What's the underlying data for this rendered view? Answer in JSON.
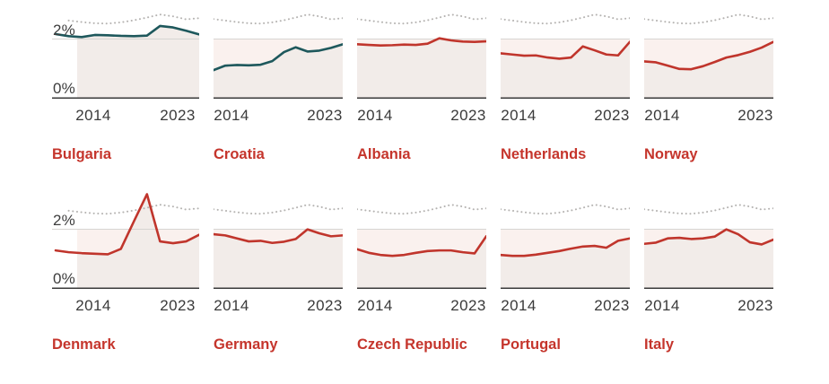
{
  "chart_data": {
    "type": "line",
    "x": [
      2013,
      2014,
      2015,
      2016,
      2017,
      2018,
      2019,
      2020,
      2021,
      2022,
      2023,
      2024
    ],
    "x_tick_labels": [
      "2014",
      "2023"
    ],
    "y_tick_labels": {
      "top": "2%",
      "bottom": "0%"
    },
    "ylim": [
      0,
      3.2
    ],
    "target_value": 2,
    "grid": "single horizontal reference line at 2%",
    "legend_position": "none",
    "reference_series": {
      "name": "dotted-gray-reference",
      "style": "dotted",
      "values": [
        2.65,
        2.6,
        2.55,
        2.51,
        2.5,
        2.54,
        2.61,
        2.7,
        2.8,
        2.74,
        2.64,
        2.68
      ]
    },
    "charts": [
      {
        "country": "Bulgaria",
        "color_key": "teal",
        "values": [
          2.15,
          2.08,
          2.05,
          2.12,
          2.11,
          2.09,
          2.08,
          2.1,
          2.42,
          2.37,
          2.26,
          2.14
        ]
      },
      {
        "country": "Croatia",
        "color_key": "teal",
        "values": [
          0.95,
          1.1,
          1.12,
          1.11,
          1.13,
          1.25,
          1.55,
          1.71,
          1.57,
          1.6,
          1.69,
          1.81
        ]
      },
      {
        "country": "Albania",
        "color_key": "red",
        "values": [
          1.81,
          1.79,
          1.77,
          1.78,
          1.8,
          1.79,
          1.83,
          2.01,
          1.94,
          1.9,
          1.89,
          1.91
        ]
      },
      {
        "country": "Netherlands",
        "color_key": "red",
        "values": [
          1.51,
          1.47,
          1.43,
          1.44,
          1.37,
          1.33,
          1.37,
          1.74,
          1.61,
          1.47,
          1.44,
          1.89
        ]
      },
      {
        "country": "Norway",
        "color_key": "red",
        "values": [
          1.24,
          1.21,
          1.1,
          0.99,
          0.98,
          1.08,
          1.22,
          1.37,
          1.45,
          1.56,
          1.7,
          1.89
        ]
      },
      {
        "country": "Denmark",
        "color_key": "red",
        "values": [
          1.28,
          1.22,
          1.19,
          1.17,
          1.15,
          1.33,
          2.25,
          3.15,
          1.58,
          1.52,
          1.58,
          1.8
        ]
      },
      {
        "country": "Germany",
        "color_key": "red",
        "values": [
          1.82,
          1.78,
          1.68,
          1.58,
          1.6,
          1.53,
          1.57,
          1.66,
          1.98,
          1.85,
          1.75,
          1.78
        ]
      },
      {
        "country": "Czech Republic",
        "color_key": "red",
        "values": [
          1.32,
          1.2,
          1.13,
          1.1,
          1.13,
          1.2,
          1.26,
          1.28,
          1.28,
          1.22,
          1.18,
          1.75
        ]
      },
      {
        "country": "Portugal",
        "color_key": "red",
        "values": [
          1.13,
          1.1,
          1.1,
          1.14,
          1.2,
          1.26,
          1.34,
          1.41,
          1.43,
          1.37,
          1.6,
          1.68
        ]
      },
      {
        "country": "Italy",
        "color_key": "red",
        "values": [
          1.5,
          1.54,
          1.68,
          1.7,
          1.66,
          1.68,
          1.74,
          1.98,
          1.82,
          1.55,
          1.48,
          1.64
        ]
      }
    ]
  },
  "colors": {
    "teal_line": "#1e585c",
    "red_line": "#c0352c",
    "country_label": "#c5352c",
    "dotted_reference": "#b5b3b1",
    "target_gridline": "#d7d5d2",
    "baseline": "#3a3a3a",
    "gap_band_fill": "#faf1ee",
    "under_line_fill": "#f2ece9",
    "tick_text": "#3a3a3a",
    "background": "#ffffff"
  },
  "layout": {
    "rows": 2,
    "cols": 5
  }
}
